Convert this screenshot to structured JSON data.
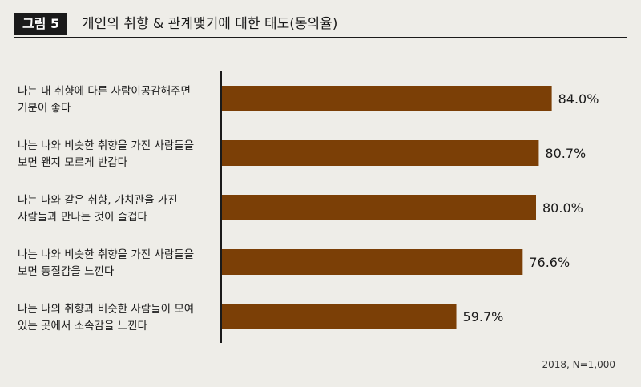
{
  "figure": {
    "number_label": "그림 5",
    "title": "개인의 취향 & 관계맺기에 대한 태도(동의율)"
  },
  "chart_data": {
    "type": "bar",
    "orientation": "horizontal",
    "categories": [
      [
        "나는 내 취향에 다른 사람이공감해주면",
        "기분이 좋다"
      ],
      [
        "나는 나와 비슷한 취향을 가진 사람들을",
        "보면 왠지 모르게 반갑다"
      ],
      [
        "나는 나와 같은 취향, 가치관을 가진",
        "사람들과 만나는 것이 즐겁다"
      ],
      [
        "나는 나와 비슷한 취향을 가진 사람들을",
        "보면 동질감을 느낀다"
      ],
      [
        "나는 나의 취향과 비슷한 사람들이 모여",
        "있는 곳에서 소속감을 느낀다"
      ]
    ],
    "values": [
      84.0,
      80.7,
      80.0,
      76.6,
      59.7
    ],
    "value_labels": [
      "84.0%",
      "80.7%",
      "80.0%",
      "76.6%",
      "59.7%"
    ],
    "xlim": [
      0,
      100
    ],
    "bar_color": "#7b3f06",
    "grid": false,
    "legend": "none"
  },
  "source_note": "2018, N=1,000"
}
